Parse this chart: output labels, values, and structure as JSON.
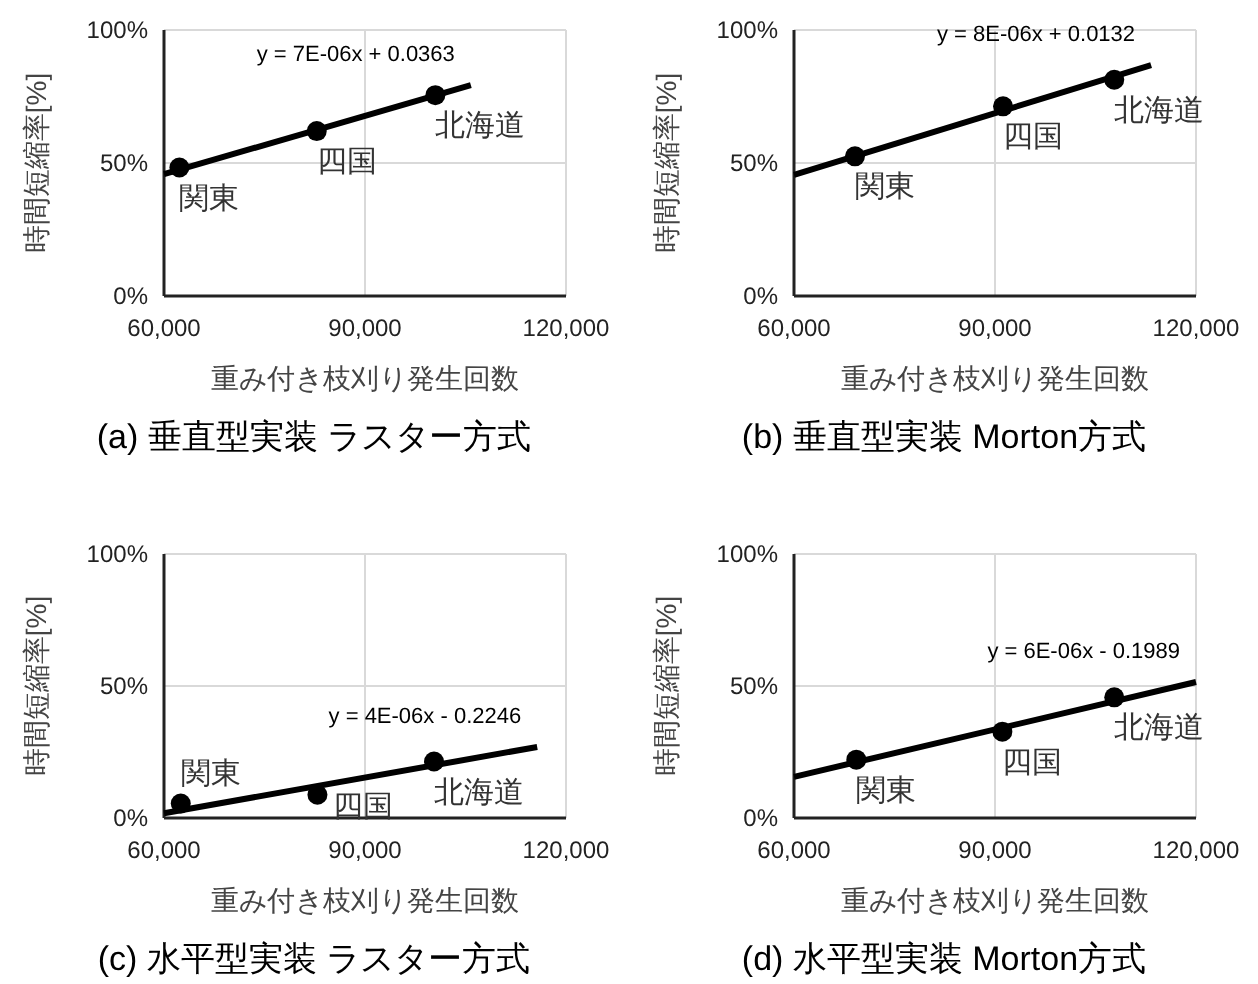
{
  "chart_data": [
    {
      "type": "scatter",
      "title": "(a) 垂直型実装 ラスター方式",
      "xlabel": "重み付き枝刈り発生回数",
      "ylabel": "時間短縮率[%]",
      "xlim": [
        60000,
        120000
      ],
      "ylim": [
        0,
        100
      ],
      "xticks": [
        {
          "value": 60000,
          "label": "60,000"
        },
        {
          "value": 90000,
          "label": "90,000"
        },
        {
          "value": 120000,
          "label": "120,000"
        }
      ],
      "yticks": [
        {
          "value": 0,
          "label": "0%"
        },
        {
          "value": 50,
          "label": "50%"
        },
        {
          "value": 100,
          "label": "100%"
        }
      ],
      "grid": true,
      "series": [
        {
          "type": "scatter",
          "marker": "circle",
          "color": "#000000",
          "x": [
            62300,
            82800,
            100500
          ],
          "values": [
            48.3,
            62,
            75.5
          ]
        },
        {
          "type": "line",
          "color": "#000000",
          "x": [
            60000,
            105800
          ],
          "values": [
            45.8,
            79.3
          ]
        }
      ],
      "annotations": [
        {
          "text": "関東",
          "x": 62300,
          "y": 48.3
        },
        {
          "text": "四国",
          "x": 82800,
          "y": 62
        },
        {
          "text": "北海道",
          "x": 100500,
          "y": 75.5
        },
        "y = 7E-06x + 0.0363"
      ]
    },
    {
      "type": "scatter",
      "title": "(b) 垂直型実装 Morton方式",
      "xlabel": "重み付き枝刈り発生回数",
      "ylabel": "時間短縮率[%]",
      "xlim": [
        60000,
        120000
      ],
      "ylim": [
        0,
        100
      ],
      "xticks": [
        {
          "value": 60000,
          "label": "60,000"
        },
        {
          "value": 90000,
          "label": "90,000"
        },
        {
          "value": 120000,
          "label": "120,000"
        }
      ],
      "yticks": [
        {
          "value": 0,
          "label": "0%"
        },
        {
          "value": 50,
          "label": "50%"
        },
        {
          "value": 100,
          "label": "100%"
        }
      ],
      "grid": true,
      "series": [
        {
          "type": "scatter",
          "marker": "circle",
          "color": "#000000",
          "x": [
            69100,
            91200,
            107800
          ],
          "values": [
            52.5,
            71.3,
            81.3
          ]
        },
        {
          "type": "line",
          "color": "#000000",
          "x": [
            60000,
            113300
          ],
          "values": [
            45.5,
            86.8
          ]
        }
      ],
      "annotations": [
        {
          "text": "関東",
          "x": 69100,
          "y": 52.5
        },
        {
          "text": "四国",
          "x": 91200,
          "y": 71.3
        },
        {
          "text": "北海道",
          "x": 107800,
          "y": 81.3
        },
        "y = 8E-06x + 0.0132"
      ]
    },
    {
      "type": "scatter",
      "title": "(c) 水平型実装 ラスター方式",
      "xlabel": "重み付き枝刈り発生回数",
      "ylabel": "時間短縮率[%]",
      "xlim": [
        60000,
        120000
      ],
      "ylim": [
        0,
        100
      ],
      "xticks": [
        {
          "value": 60000,
          "label": "60,000"
        },
        {
          "value": 90000,
          "label": "90,000"
        },
        {
          "value": 120000,
          "label": "120,000"
        }
      ],
      "yticks": [
        {
          "value": 0,
          "label": "0%"
        },
        {
          "value": 50,
          "label": "50%"
        },
        {
          "value": 100,
          "label": "100%"
        }
      ],
      "grid": true,
      "series": [
        {
          "type": "scatter",
          "marker": "circle",
          "color": "#000000",
          "x": [
            62500,
            82900,
            100300
          ],
          "values": [
            5.5,
            8.8,
            21.4
          ]
        },
        {
          "type": "line",
          "color": "#000000",
          "x": [
            60000,
            115700
          ],
          "values": [
            1.8,
            26.9
          ]
        }
      ],
      "annotations": [
        {
          "text": "関東",
          "x": 62500,
          "y": 5.5
        },
        {
          "text": "四国",
          "x": 82900,
          "y": 8.8
        },
        {
          "text": "北海道",
          "x": 100300,
          "y": 21.4
        },
        "y = 4E-06x - 0.2246"
      ]
    },
    {
      "type": "scatter",
      "title": "(d) 水平型実装 Morton方式",
      "xlabel": "重み付き枝刈り発生回数",
      "ylabel": "時間短縮率[%]",
      "xlim": [
        60000,
        120000
      ],
      "ylim": [
        0,
        100
      ],
      "xticks": [
        {
          "value": 60000,
          "label": "60,000"
        },
        {
          "value": 90000,
          "label": "90,000"
        },
        {
          "value": 120000,
          "label": "120,000"
        }
      ],
      "yticks": [
        {
          "value": 0,
          "label": "0%"
        },
        {
          "value": 50,
          "label": "50%"
        },
        {
          "value": 100,
          "label": "100%"
        }
      ],
      "grid": true,
      "series": [
        {
          "type": "scatter",
          "marker": "circle",
          "color": "#000000",
          "x": [
            69300,
            91100,
            107800
          ],
          "values": [
            22.1,
            32.7,
            45.7
          ]
        },
        {
          "type": "line",
          "color": "#000000",
          "x": [
            60000,
            120000
          ],
          "values": [
            15.6,
            51.5
          ]
        }
      ],
      "annotations": [
        {
          "text": "関東",
          "x": 69300,
          "y": 22.1
        },
        {
          "text": "四国",
          "x": 91100,
          "y": 32.7
        },
        {
          "text": "北海道",
          "x": 107800,
          "y": 45.7
        },
        "y = 6E-06x - 0.1989"
      ]
    }
  ]
}
